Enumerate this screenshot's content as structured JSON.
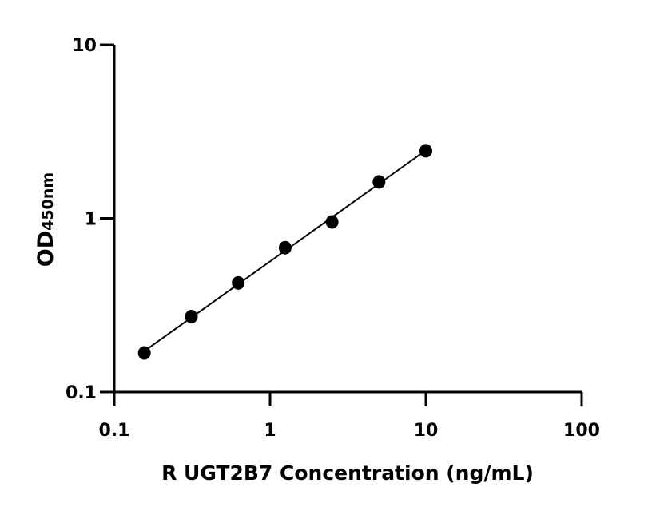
{
  "chart_data": {
    "type": "scatter",
    "title": "",
    "xlabel": "R UGT2B7 Concentration (ng/mL)",
    "ylabel_main": "OD",
    "ylabel_sub": "450nm",
    "x_scale": "log",
    "y_scale": "log",
    "xlim": [
      0.1,
      100
    ],
    "ylim": [
      0.1,
      10
    ],
    "x_ticks": [
      0.1,
      1,
      10,
      100
    ],
    "x_tick_labels": [
      "0.1",
      "1",
      "10",
      "100"
    ],
    "y_ticks": [
      0.1,
      1,
      10
    ],
    "y_tick_labels": [
      "0.1",
      "1",
      "10"
    ],
    "grid": false,
    "fit_line": true,
    "color": "#000000",
    "series": [
      {
        "x": [
          0.156,
          0.3125,
          0.625,
          1.25,
          2.5,
          5,
          10
        ],
        "y": [
          0.168,
          0.272,
          0.425,
          0.678,
          0.953,
          1.62,
          2.45
        ]
      }
    ]
  }
}
